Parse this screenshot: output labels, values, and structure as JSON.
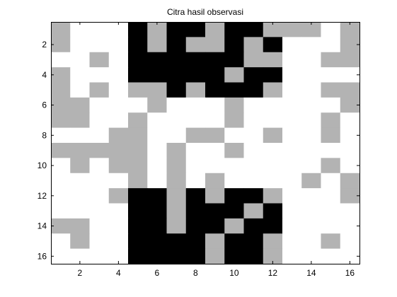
{
  "chart_data": {
    "type": "heatmap",
    "title": "Citra hasil observasi",
    "xlabel": "",
    "ylabel": "",
    "xlim": [
      0.5,
      16.5
    ],
    "ylim": [
      0.5,
      16.5
    ],
    "y_reversed": true,
    "x_ticks": [
      "2",
      "4",
      "6",
      "8",
      "10",
      "12",
      "14",
      "16"
    ],
    "y_ticks": [
      "2",
      "4",
      "6",
      "8",
      "10",
      "12",
      "14",
      "16"
    ],
    "grid": false,
    "colormap": {
      "0": "#000000",
      "1": "#b3b3b3",
      "2": "#ffffff"
    },
    "values": [
      [
        1,
        2,
        2,
        2,
        0,
        1,
        0,
        0,
        1,
        0,
        0,
        1,
        1,
        1,
        2,
        1
      ],
      [
        1,
        2,
        2,
        2,
        0,
        1,
        0,
        1,
        1,
        0,
        1,
        0,
        2,
        2,
        2,
        1
      ],
      [
        2,
        2,
        1,
        2,
        0,
        0,
        0,
        0,
        0,
        0,
        1,
        1,
        2,
        2,
        1,
        1
      ],
      [
        1,
        2,
        2,
        2,
        0,
        0,
        0,
        0,
        0,
        1,
        0,
        0,
        2,
        2,
        2,
        2
      ],
      [
        1,
        2,
        1,
        2,
        1,
        1,
        0,
        1,
        0,
        0,
        0,
        1,
        2,
        2,
        1,
        1
      ],
      [
        1,
        1,
        2,
        2,
        2,
        1,
        2,
        2,
        2,
        1,
        2,
        2,
        2,
        2,
        2,
        1
      ],
      [
        1,
        1,
        2,
        2,
        1,
        2,
        2,
        2,
        2,
        1,
        2,
        2,
        2,
        2,
        1,
        2
      ],
      [
        2,
        2,
        2,
        1,
        1,
        2,
        2,
        1,
        1,
        2,
        2,
        1,
        2,
        2,
        1,
        2
      ],
      [
        1,
        1,
        1,
        1,
        1,
        2,
        1,
        2,
        2,
        1,
        2,
        2,
        2,
        2,
        2,
        2
      ],
      [
        2,
        1,
        2,
        1,
        1,
        2,
        1,
        2,
        2,
        2,
        2,
        2,
        2,
        2,
        1,
        2
      ],
      [
        2,
        2,
        2,
        2,
        1,
        2,
        1,
        2,
        1,
        2,
        2,
        2,
        2,
        1,
        2,
        1
      ],
      [
        2,
        2,
        2,
        1,
        0,
        0,
        1,
        0,
        1,
        0,
        0,
        1,
        2,
        2,
        2,
        1
      ],
      [
        2,
        2,
        2,
        2,
        0,
        0,
        1,
        0,
        0,
        0,
        1,
        0,
        2,
        2,
        2,
        2
      ],
      [
        1,
        1,
        2,
        2,
        0,
        0,
        1,
        0,
        0,
        1,
        0,
        0,
        2,
        2,
        2,
        2
      ],
      [
        2,
        1,
        2,
        2,
        0,
        0,
        0,
        0,
        1,
        0,
        0,
        1,
        2,
        2,
        1,
        2
      ],
      [
        2,
        2,
        2,
        2,
        0,
        0,
        0,
        0,
        1,
        0,
        0,
        1,
        2,
        2,
        2,
        2
      ]
    ]
  }
}
